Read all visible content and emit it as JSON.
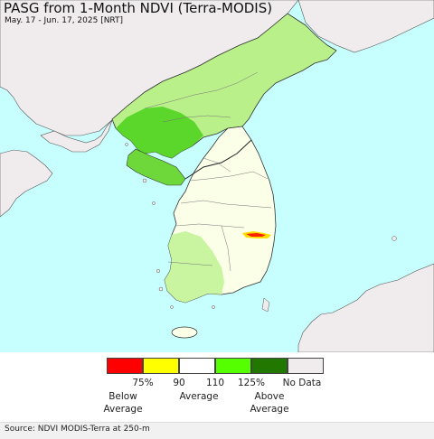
{
  "header": {
    "title": "PASG from 1-Month NDVI (Terra-MODIS)",
    "subtitle": "May. 17 - Jun. 17, 2025 [NRT]"
  },
  "map": {
    "sea_color": "#c7ffff",
    "land_color": "#f0ecee",
    "border_color": "#333333"
  },
  "legend": {
    "colors": [
      "#ff0000",
      "#ffff00",
      "#ffffff",
      "#55ff00",
      "#227700",
      "#f0ecee"
    ],
    "ticks": [
      "75%",
      "90",
      "110",
      "125%",
      "No Data"
    ],
    "below": "Below\nAverage",
    "average": "Average",
    "above": "Above\nAverage"
  },
  "footer": {
    "source": "Source: NDVI MODIS-Terra at 250-m"
  }
}
